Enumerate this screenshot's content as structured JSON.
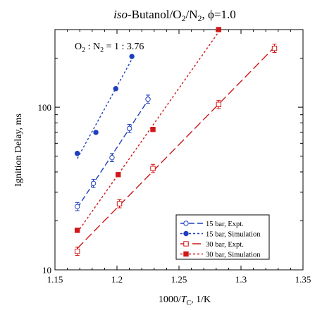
{
  "chart_data": {
    "type": "scatter",
    "title": {
      "italic": "iso",
      "rest": "-Butanol/O",
      "sub1": "2",
      "mid": "/N",
      "sub2": "2",
      "tail": ", ϕ=1.0"
    },
    "annotation": {
      "p1": "O",
      "s1": "2",
      "p2": " : N",
      "s2": "2",
      "p3": " = 1 : 3.76"
    },
    "xlabel": {
      "prefix": "1000/",
      "italic": "T",
      "sub": "C",
      "suffix": ", 1/K"
    },
    "ylabel": "Ignition Delay, ms",
    "xlim": [
      1.15,
      1.35
    ],
    "ylim": [
      10,
      300
    ],
    "yscale": "log",
    "xticks": [
      "1.15",
      "1.2",
      "1.25",
      "1.3",
      "1.35"
    ],
    "xtick_values": [
      1.15,
      1.2,
      1.25,
      1.3,
      1.35
    ],
    "yticks": [
      "10",
      "100"
    ],
    "ytick_values": [
      10,
      100
    ],
    "legend_position": "bottom-right",
    "series": [
      {
        "name": "15 bar, Expt.",
        "color": "#1f3fbf",
        "marker": "circle-open",
        "dash": "8,4",
        "errorbars": true,
        "x": [
          1.168,
          1.181,
          1.196,
          1.21,
          1.225
        ],
        "y": [
          24.5,
          34,
          49,
          74,
          112
        ]
      },
      {
        "name": "15 bar, Simulation",
        "color": "#1f3fbf",
        "marker": "circle-filled",
        "dash": "3,3",
        "errorbars": false,
        "x": [
          1.168,
          1.183,
          1.199,
          1.212
        ],
        "y": [
          52,
          70,
          130,
          205
        ]
      },
      {
        "name": "30 bar, Expt.",
        "color": "#d01818",
        "marker": "square-open",
        "dash": "12,5",
        "errorbars": true,
        "x": [
          1.168,
          1.202,
          1.229,
          1.282,
          1.327
        ],
        "y": [
          13,
          25.5,
          42,
          104,
          230
        ]
      },
      {
        "name": "30 bar, Simulation",
        "color": "#d01818",
        "marker": "square-filled",
        "dash": "3,3",
        "errorbars": false,
        "x": [
          1.168,
          1.201,
          1.229,
          1.282
        ],
        "y": [
          17.5,
          38.5,
          73,
          300
        ]
      }
    ]
  }
}
